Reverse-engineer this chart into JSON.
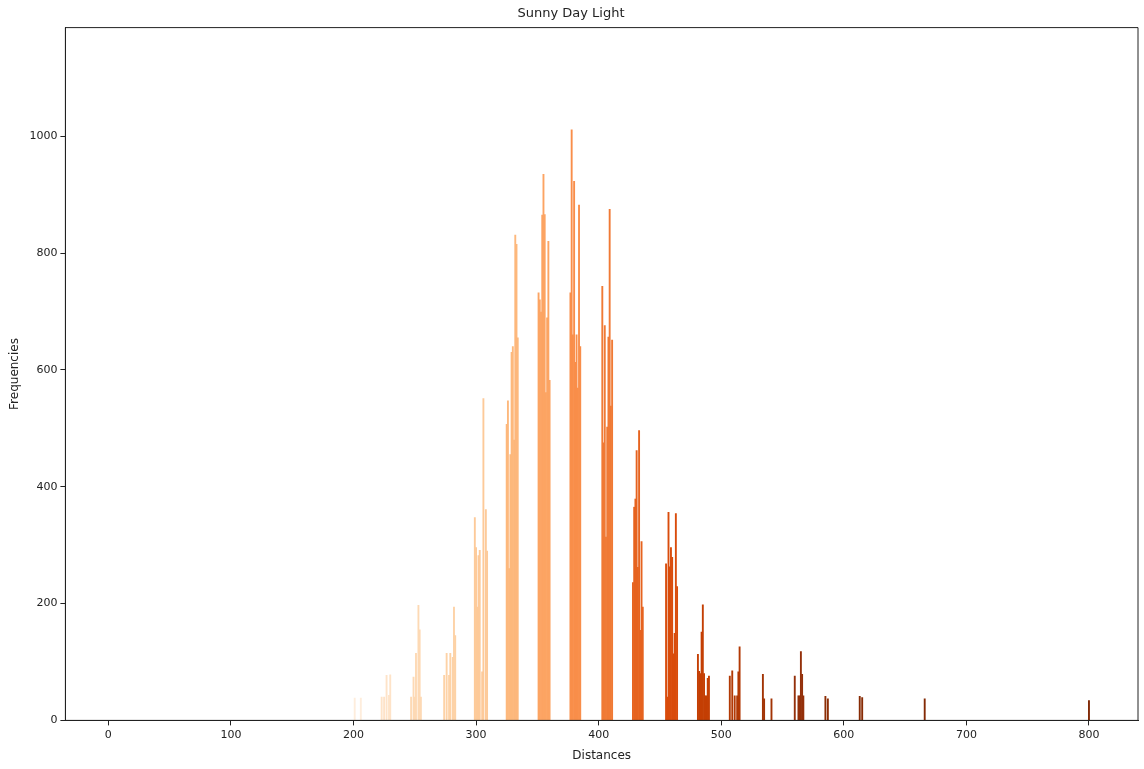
{
  "chart_data": {
    "type": "bar",
    "title": "Sunny Day Light",
    "xlabel": "Distances",
    "ylabel": "Frequencies",
    "xlim": [
      -35,
      840
    ],
    "xticks": [
      0,
      100,
      200,
      300,
      400,
      500,
      600,
      700,
      800
    ],
    "ylim": [
      0,
      1186
    ],
    "yticks": [
      0,
      200,
      400,
      600,
      800,
      1000
    ],
    "grid": false,
    "legend": false,
    "series": [
      {
        "color": "#feeddc",
        "x": [
          201,
          206
        ],
        "values": [
          38,
          38
        ]
      },
      {
        "color": "#fee3c8",
        "x": [
          223,
          225,
          227,
          229,
          230
        ],
        "values": [
          40,
          40,
          77,
          43,
          78
        ]
      },
      {
        "color": "#fdd9b4",
        "x": [
          247,
          249,
          250,
          251,
          253,
          254,
          255
        ],
        "values": [
          40,
          74,
          40,
          115,
          197,
          155,
          40
        ]
      },
      {
        "color": "#fdd2a6",
        "x": [
          274,
          276,
          278,
          279,
          281,
          282,
          283
        ],
        "values": [
          77,
          115,
          77,
          115,
          108,
          194,
          145
        ]
      },
      {
        "color": "#fdca99",
        "x": [
          299,
          300,
          301,
          302,
          303,
          305,
          306,
          308,
          309
        ],
        "values": [
          347,
          296,
          194,
          282,
          291,
          83,
          551,
          361,
          290
        ]
      },
      {
        "color": "#fdb87c",
        "x": [
          325,
          326,
          327,
          328,
          329,
          330,
          331,
          332,
          333,
          334
        ],
        "values": [
          507,
          547,
          260,
          455,
          630,
          640,
          480,
          831,
          815,
          655
        ]
      },
      {
        "color": "#fca463",
        "x": [
          351,
          352,
          353,
          354,
          355,
          356,
          357,
          358,
          359,
          360
        ],
        "values": [
          732,
          720,
          699,
          865,
          935,
          866,
          561,
          689,
          820,
          582
        ]
      },
      {
        "color": "#f98e4a",
        "x": [
          377,
          378,
          379,
          380,
          381,
          382,
          383,
          384,
          385
        ],
        "values": [
          732,
          1011,
          660,
          923,
          613,
          660,
          569,
          882,
          640
        ]
      },
      {
        "color": "#f07a35",
        "x": [
          403,
          404,
          405,
          406,
          407,
          408,
          409,
          410,
          411
        ],
        "values": [
          743,
          475,
          676,
          314,
          502,
          656,
          875,
          538,
          651
        ]
      },
      {
        "color": "#e6631f",
        "x": [
          428,
          429,
          430,
          431,
          432,
          433,
          434,
          435,
          436
        ],
        "values": [
          236,
          365,
          379,
          462,
          262,
          496,
          154,
          306,
          194
        ]
      },
      {
        "color": "#d94c0c",
        "x": [
          455,
          456,
          457,
          458,
          459,
          460,
          461,
          462,
          463,
          464
        ],
        "values": [
          268,
          40,
          356,
          263,
          296,
          279,
          114,
          149,
          354,
          229
        ]
      },
      {
        "color": "#c43f04",
        "x": [
          481,
          482,
          483,
          484,
          485,
          486,
          487,
          488,
          489,
          490
        ],
        "values": [
          113,
          84,
          80,
          151,
          198,
          80,
          42,
          42,
          72,
          76
        ]
      },
      {
        "color": "#b23904",
        "x": [
          507,
          509,
          511,
          513,
          514,
          515
        ],
        "values": [
          76,
          85,
          42,
          42,
          83,
          126
        ]
      },
      {
        "color": "#a23405",
        "x": [
          534,
          535,
          541
        ],
        "values": [
          79,
          37,
          37
        ]
      },
      {
        "color": "#94300a",
        "x": [
          560,
          563,
          564,
          565,
          566,
          567
        ],
        "values": [
          76,
          42,
          42,
          118,
          79,
          42
        ]
      },
      {
        "color": "#8c2d04",
        "x": [
          585,
          587
        ],
        "values": [
          41,
          37
        ]
      },
      {
        "color": "#872b05",
        "x": [
          613,
          615
        ],
        "values": [
          41,
          39
        ]
      },
      {
        "color": "#842a05",
        "x": [
          666
        ],
        "values": [
          37
        ]
      },
      {
        "color": "#7f2704",
        "x": [
          800
        ],
        "values": [
          34
        ]
      }
    ]
  }
}
